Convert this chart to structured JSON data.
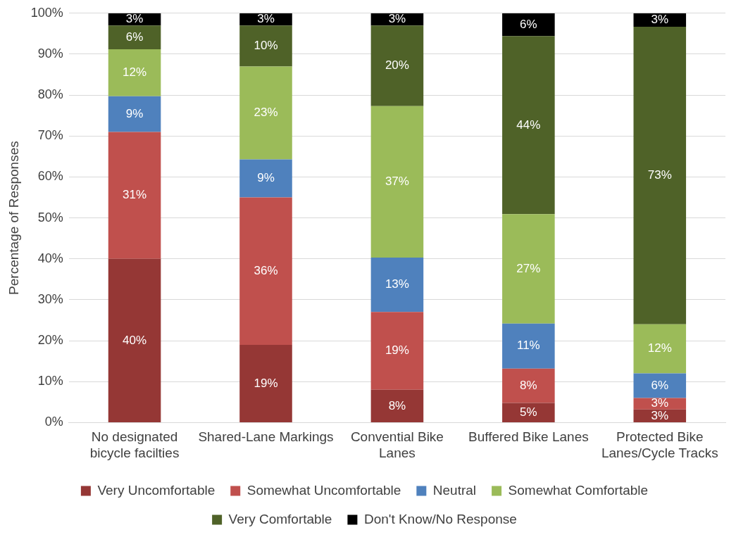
{
  "chart_data": {
    "type": "bar",
    "stacked": true,
    "ylabel": "Percentage of Responses",
    "categories": [
      "No designated bicycle facilties",
      "Shared-Lane Markings",
      "Convential Bike Lanes",
      "Buffered Bike Lanes",
      "Protected Bike Lanes/Cycle Tracks"
    ],
    "series": [
      {
        "name": "Very Uncomfortable",
        "color": "#953735",
        "values": [
          40,
          19,
          8,
          4.8,
          3.2
        ],
        "value_labels": [
          "40%",
          "19%",
          "8%",
          "5%",
          "3%"
        ]
      },
      {
        "name": "Somewhat Uncomfortable",
        "color": "#c0504d",
        "values": [
          31,
          36,
          19,
          8.4,
          2.8
        ],
        "value_labels": [
          "31%",
          "36%",
          "19%",
          "8%",
          "3%"
        ]
      },
      {
        "name": "Neutral",
        "color": "#4f81bd",
        "values": [
          8.7,
          9.3,
          13.3,
          11,
          6
        ],
        "value_labels": [
          "9%",
          "9%",
          "13%",
          "11%",
          "6%"
        ]
      },
      {
        "name": "Somewhat Comfortable",
        "color": "#9bbb59",
        "values": [
          11.5,
          22.7,
          37,
          26.7,
          12
        ],
        "value_labels": [
          "12%",
          "23%",
          "37%",
          "27%",
          "12%"
        ]
      },
      {
        "name": "Very Comfortable",
        "color": "#4f6228",
        "values": [
          5.8,
          10,
          19.7,
          43.5,
          72.7
        ],
        "value_labels": [
          "6%",
          "10%",
          "20%",
          "44%",
          "73%"
        ]
      },
      {
        "name": "Don't Know/No Response",
        "color": "#000000",
        "values": [
          3,
          3,
          3,
          5.6,
          3.3
        ],
        "value_labels": [
          "3%",
          "3%",
          "3%",
          "6%",
          "3%"
        ]
      }
    ],
    "ylim": [
      0,
      100
    ],
    "yticks": [
      {
        "value": 0,
        "label": "0%"
      },
      {
        "value": 10,
        "label": "10%"
      },
      {
        "value": 20,
        "label": "20%"
      },
      {
        "value": 30,
        "label": "30%"
      },
      {
        "value": 40,
        "label": "40%"
      },
      {
        "value": 50,
        "label": "50%"
      },
      {
        "value": 60,
        "label": "60%"
      },
      {
        "value": 70,
        "label": "70%"
      },
      {
        "value": 80,
        "label": "80%"
      },
      {
        "value": 90,
        "label": "90%"
      },
      {
        "value": 100,
        "label": "100%"
      }
    ],
    "grid": "y",
    "legend": "bottom"
  }
}
